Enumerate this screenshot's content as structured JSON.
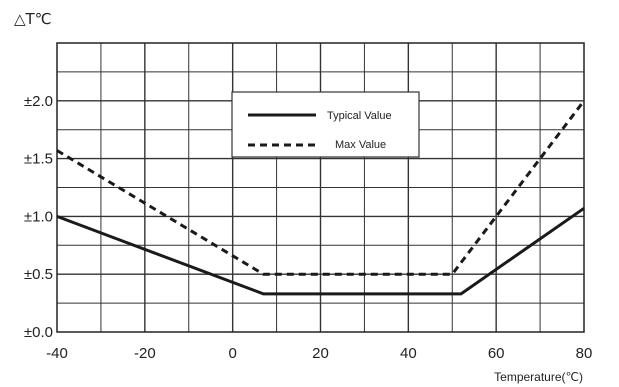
{
  "chart_data": {
    "type": "line",
    "title": "",
    "ylabel": "△T℃",
    "xlabel": "Temperature(℃)",
    "xlim": [
      -40,
      80
    ],
    "ylim": [
      0,
      2.5
    ],
    "x_ticks": [
      -40,
      -20,
      0,
      20,
      40,
      60,
      80
    ],
    "x_tick_labels": [
      "-40",
      "-20",
      "0",
      "20",
      "40",
      "60",
      "80"
    ],
    "y_ticks": [
      0,
      0.5,
      1.0,
      1.5,
      2.0
    ],
    "y_tick_labels": [
      "±0.0",
      "±0.5",
      "±1.0",
      "±1.5",
      "±2.0"
    ],
    "grid": true,
    "legend_position": "top-center",
    "series": [
      {
        "name": "Typical Value",
        "style": "solid",
        "color": "#1a1a1a",
        "x": [
          -40,
          7,
          52,
          80
        ],
        "y": [
          1.0,
          0.33,
          0.33,
          1.07
        ]
      },
      {
        "name": "Max Value",
        "style": "dashed",
        "color": "#1a1a1a",
        "x": [
          -40,
          7,
          50,
          80
        ],
        "y": [
          1.57,
          0.5,
          0.5,
          2.0
        ]
      }
    ]
  }
}
